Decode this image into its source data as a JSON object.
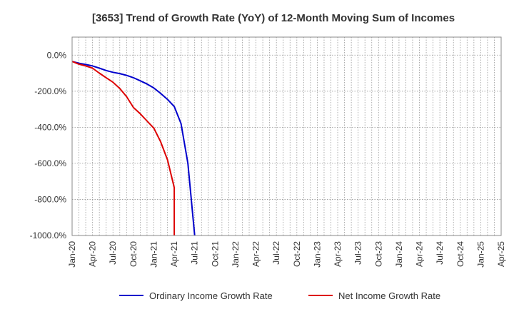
{
  "chart_data": {
    "type": "line",
    "title": "[3653]  Trend of Growth Rate (YoY) of 12-Month Moving Sum of Incomes",
    "xlabel": "",
    "ylabel": "",
    "x_ticks": [
      "Jan-20",
      "Apr-20",
      "Jul-20",
      "Oct-20",
      "Jan-21",
      "Apr-21",
      "Jul-21",
      "Oct-21",
      "Jan-22",
      "Apr-22",
      "Jul-22",
      "Oct-22",
      "Jan-23",
      "Apr-23",
      "Jul-23",
      "Oct-23",
      "Jan-24",
      "Apr-24",
      "Jul-24",
      "Oct-24",
      "Jan-25",
      "Apr-25"
    ],
    "xlim": [
      "Jan-20",
      "Apr-25"
    ],
    "y_ticks": [
      0,
      -200,
      -400,
      -600,
      -800,
      -1000
    ],
    "y_tick_labels": [
      "0.0%",
      "-200.0%",
      "-400.0%",
      "-600.0%",
      "-800.0%",
      "-1000.0%"
    ],
    "ylim": [
      -1000,
      100
    ],
    "grid": true,
    "legend_position": "bottom",
    "series": [
      {
        "name": "Ordinary Income Growth Rate",
        "color": "#0000cc",
        "x": [
          "Jan-20",
          "Feb-20",
          "Mar-20",
          "Apr-20",
          "May-20",
          "Jun-20",
          "Jul-20",
          "Aug-20",
          "Sep-20",
          "Oct-20",
          "Nov-20",
          "Dec-20",
          "Jan-21",
          "Feb-21",
          "Mar-21",
          "Apr-21",
          "May-21",
          "Jun-21",
          "Jul-21"
        ],
        "values": [
          -35,
          -45,
          -52,
          -60,
          -72,
          -85,
          -95,
          -102,
          -112,
          -125,
          -142,
          -160,
          -182,
          -212,
          -245,
          -285,
          -380,
          -600,
          -1000
        ]
      },
      {
        "name": "Net Income Growth Rate",
        "color": "#dd0000",
        "x": [
          "Jan-20",
          "Feb-20",
          "Mar-20",
          "Apr-20",
          "May-20",
          "Jun-20",
          "Jul-20",
          "Aug-20",
          "Sep-20",
          "Oct-20",
          "Nov-20",
          "Dec-20",
          "Jan-21",
          "Feb-21",
          "Mar-21",
          "Apr-21",
          "Apr-21"
        ],
        "values": [
          -35,
          -50,
          -60,
          -72,
          -100,
          -125,
          -150,
          -185,
          -230,
          -290,
          -325,
          -365,
          -405,
          -480,
          -580,
          -735,
          -1000
        ]
      }
    ]
  }
}
